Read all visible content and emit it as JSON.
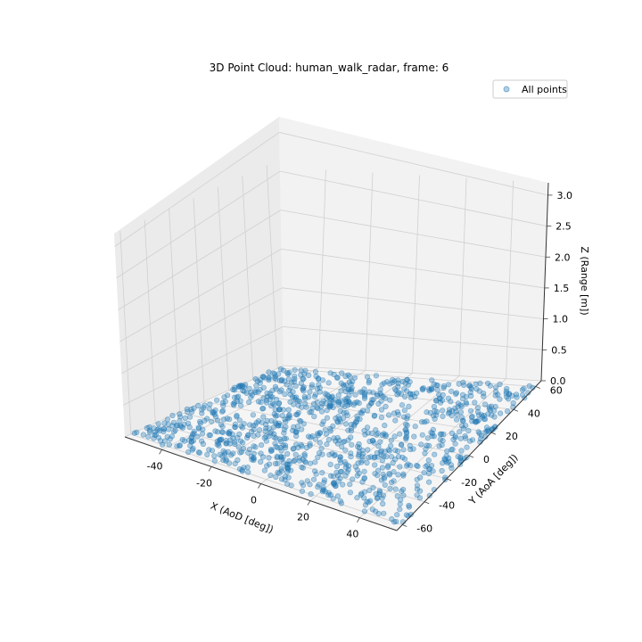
{
  "chart_data": {
    "type": "scatter",
    "title": "3D Point Cloud: human_walk_radar, frame: 6",
    "xlabel": "X (AoD [deg])",
    "ylabel": "Y (AoA [deg])",
    "zlabel": "Z (Range [m])",
    "xlim": [
      -55,
      55
    ],
    "ylim": [
      -65,
      65
    ],
    "zlim": [
      0,
      3.2
    ],
    "x_ticks": [
      -40,
      -20,
      0,
      20,
      40
    ],
    "y_ticks": [
      -60,
      -40,
      -20,
      0,
      20,
      40,
      60
    ],
    "z_ticks": [
      "0.0",
      "0.5",
      "1.0",
      "1.5",
      "2.0",
      "2.5",
      "3.0"
    ],
    "grid": true,
    "legend_position": "upper right",
    "series": [
      {
        "name": "All points",
        "color": "#1f77b4",
        "alpha": 0.35,
        "description_of_points": "dense cloud on the floor plane z≈0",
        "x_range": [
          -55,
          55
        ],
        "y_range": [
          -60,
          60
        ],
        "z_value": 0.0
      }
    ]
  }
}
